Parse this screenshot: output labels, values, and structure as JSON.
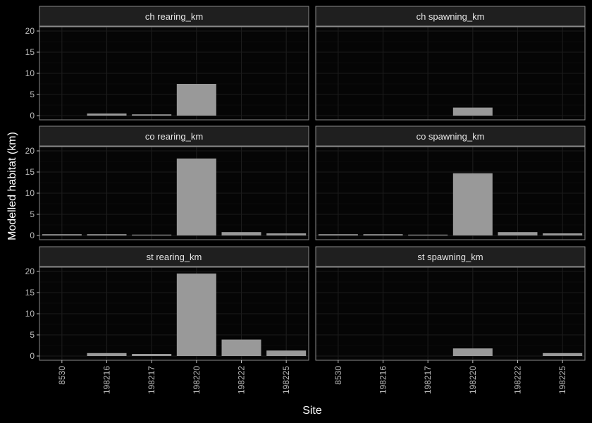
{
  "chart_data": {
    "type": "bar",
    "facet_layout": "3x2",
    "categories": [
      "8530",
      "198216",
      "198217",
      "198220",
      "198222",
      "198225"
    ],
    "ylim": [
      -1,
      21
    ],
    "y_ticks": [
      0,
      5,
      10,
      15,
      20
    ],
    "xlabel": "Site",
    "ylabel": "Modelled habitat (km)",
    "grid": true,
    "colors": {
      "bar": "#999999",
      "panel_background": "#050505",
      "strip_background": "#1f1f1f",
      "grid": "#1c1c1c",
      "border": "#8a8a8a"
    },
    "panels": [
      {
        "name": "ch rearing_km",
        "values": [
          0,
          0.5,
          0.3,
          7.5,
          0,
          0
        ]
      },
      {
        "name": "ch spawning_km",
        "values": [
          0,
          0,
          0,
          1.9,
          0,
          0
        ]
      },
      {
        "name": "co rearing_km",
        "values": [
          0.3,
          0.3,
          0.2,
          18.2,
          0.8,
          0.5
        ]
      },
      {
        "name": "co spawning_km",
        "values": [
          0.3,
          0.3,
          0.2,
          14.7,
          0.8,
          0.5
        ]
      },
      {
        "name": "st rearing_km",
        "values": [
          0,
          0.7,
          0.5,
          19.5,
          3.9,
          1.3
        ]
      },
      {
        "name": "st spawning_km",
        "values": [
          0,
          0,
          0,
          1.8,
          0,
          0.7
        ]
      }
    ]
  }
}
